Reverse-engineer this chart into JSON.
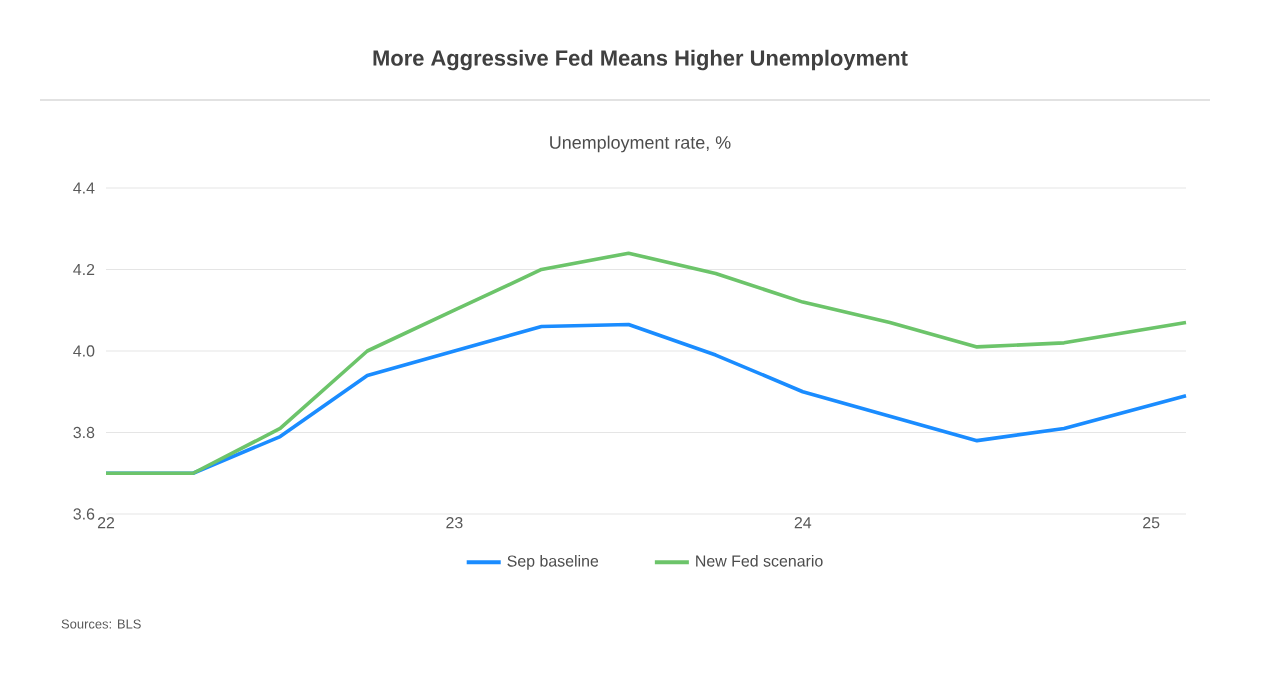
{
  "chart_data": {
    "type": "line",
    "title": "More Aggressive Fed Means Higher Unemployment",
    "subtitle": "Unemployment rate, %",
    "x": [
      22,
      22.25,
      22.5,
      22.75,
      23,
      23.25,
      23.5,
      23.75,
      24,
      24.25,
      24.5,
      24.75,
      25.1
    ],
    "series": [
      {
        "name": "Sep baseline",
        "color": "#1a8cff",
        "values": [
          3.7,
          3.7,
          3.79,
          3.94,
          4.0,
          4.06,
          4.065,
          3.99,
          3.9,
          3.84,
          3.78,
          3.81,
          3.89
        ]
      },
      {
        "name": "New Fed scenario",
        "color": "#6cc46a",
        "values": [
          3.7,
          3.7,
          3.81,
          4.0,
          4.1,
          4.2,
          4.24,
          4.19,
          4.12,
          4.07,
          4.01,
          4.02,
          4.07
        ]
      }
    ],
    "xlim": [
      22,
      25.1
    ],
    "xticks": [
      22,
      23,
      24,
      25
    ],
    "ylim": [
      3.6,
      4.4
    ],
    "yticks": [
      3.6,
      3.8,
      {
        "value": 4.0,
        "label": "4.0"
      },
      4.2,
      4.4
    ],
    "grid": "y",
    "legend": "bottom",
    "marker": "none",
    "line_style": "solid",
    "annotations": [
      "Sources: BLS"
    ]
  }
}
